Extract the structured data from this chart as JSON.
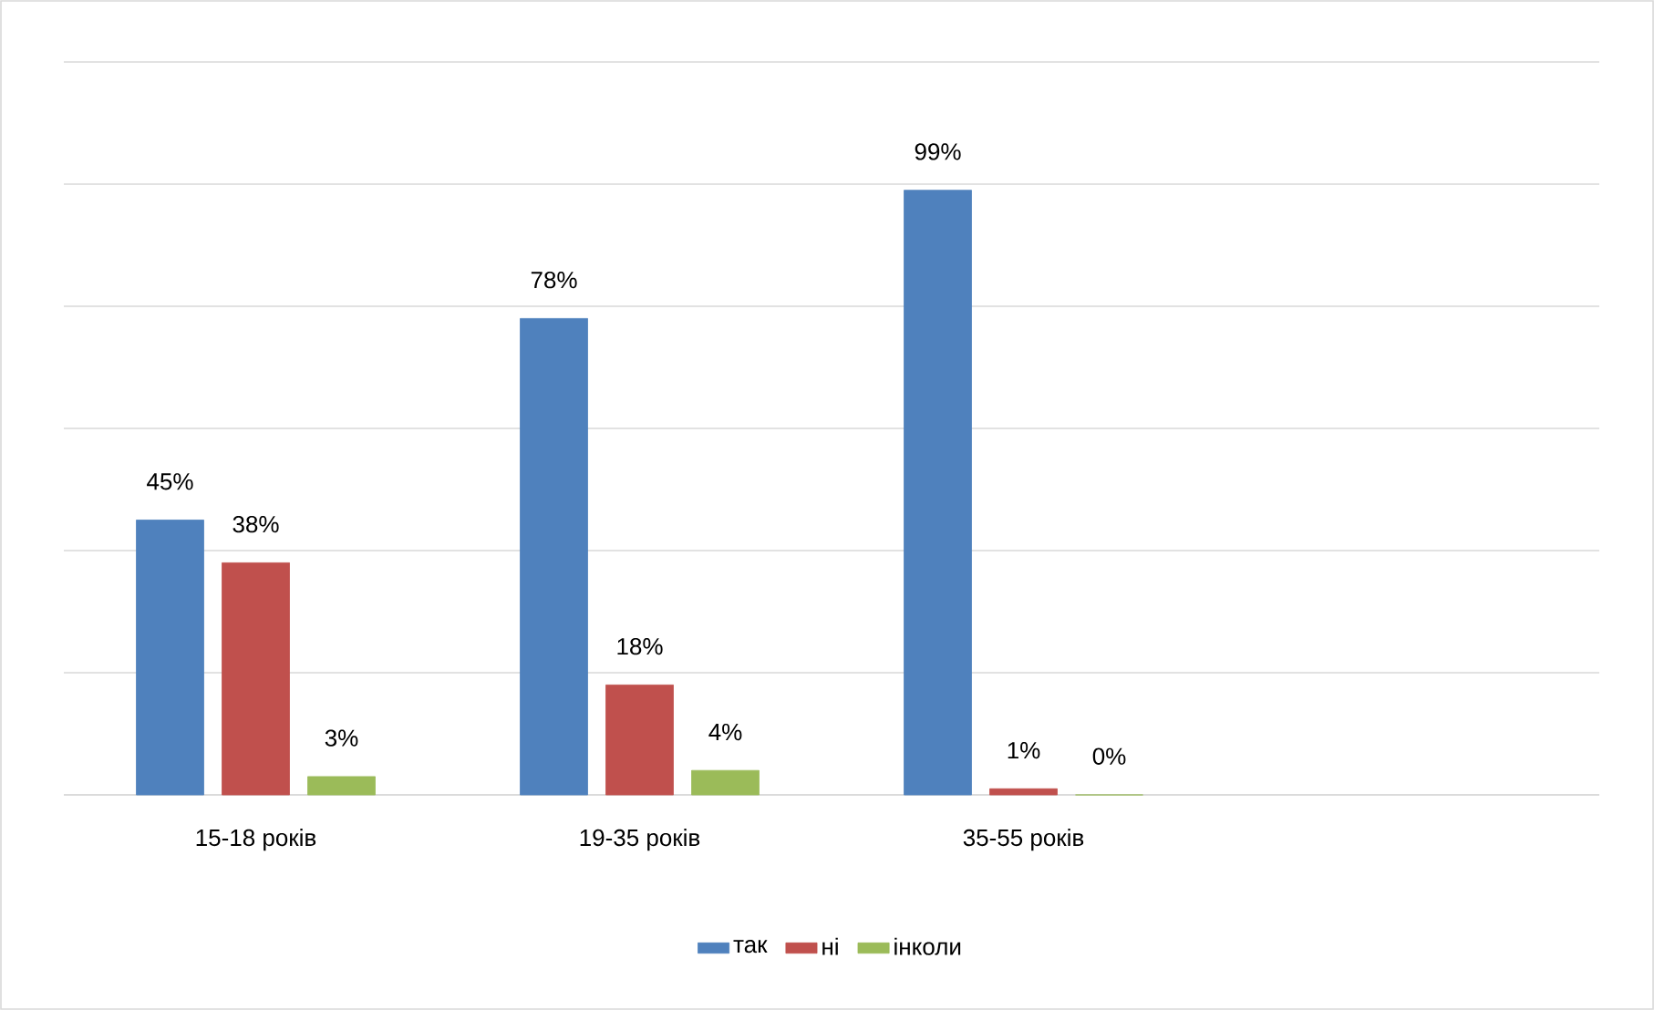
{
  "chart_data": {
    "type": "bar",
    "categories": [
      "15-18 років",
      "19-35 років",
      "35-55 років",
      null
    ],
    "series": [
      {
        "name": "так",
        "color": "#4f81bd",
        "values": [
          45,
          78,
          99,
          null
        ],
        "value_labels": [
          "45%",
          "78%",
          "99%",
          null
        ]
      },
      {
        "name": "ні",
        "color": "#c0504d",
        "values": [
          38,
          18,
          1,
          null
        ],
        "value_labels": [
          "38%",
          "18%",
          "1%",
          null
        ]
      },
      {
        "name": "інколи",
        "color": "#9bbb59",
        "values": [
          3,
          4,
          0,
          null
        ],
        "value_labels": [
          "3%",
          "4%",
          "0%",
          null
        ]
      }
    ],
    "ylim": [
      0,
      120
    ],
    "yticks": [
      {
        "value": 0,
        "label": null
      },
      {
        "value": 20,
        "label": null
      },
      {
        "value": 40,
        "label": null
      },
      {
        "value": 60,
        "label": null
      },
      {
        "value": 80,
        "label": null
      },
      {
        "value": 100,
        "label": null
      },
      {
        "value": 120,
        "label": null
      }
    ],
    "tick_labels": "x",
    "grid": "y",
    "legend": "bottom"
  }
}
